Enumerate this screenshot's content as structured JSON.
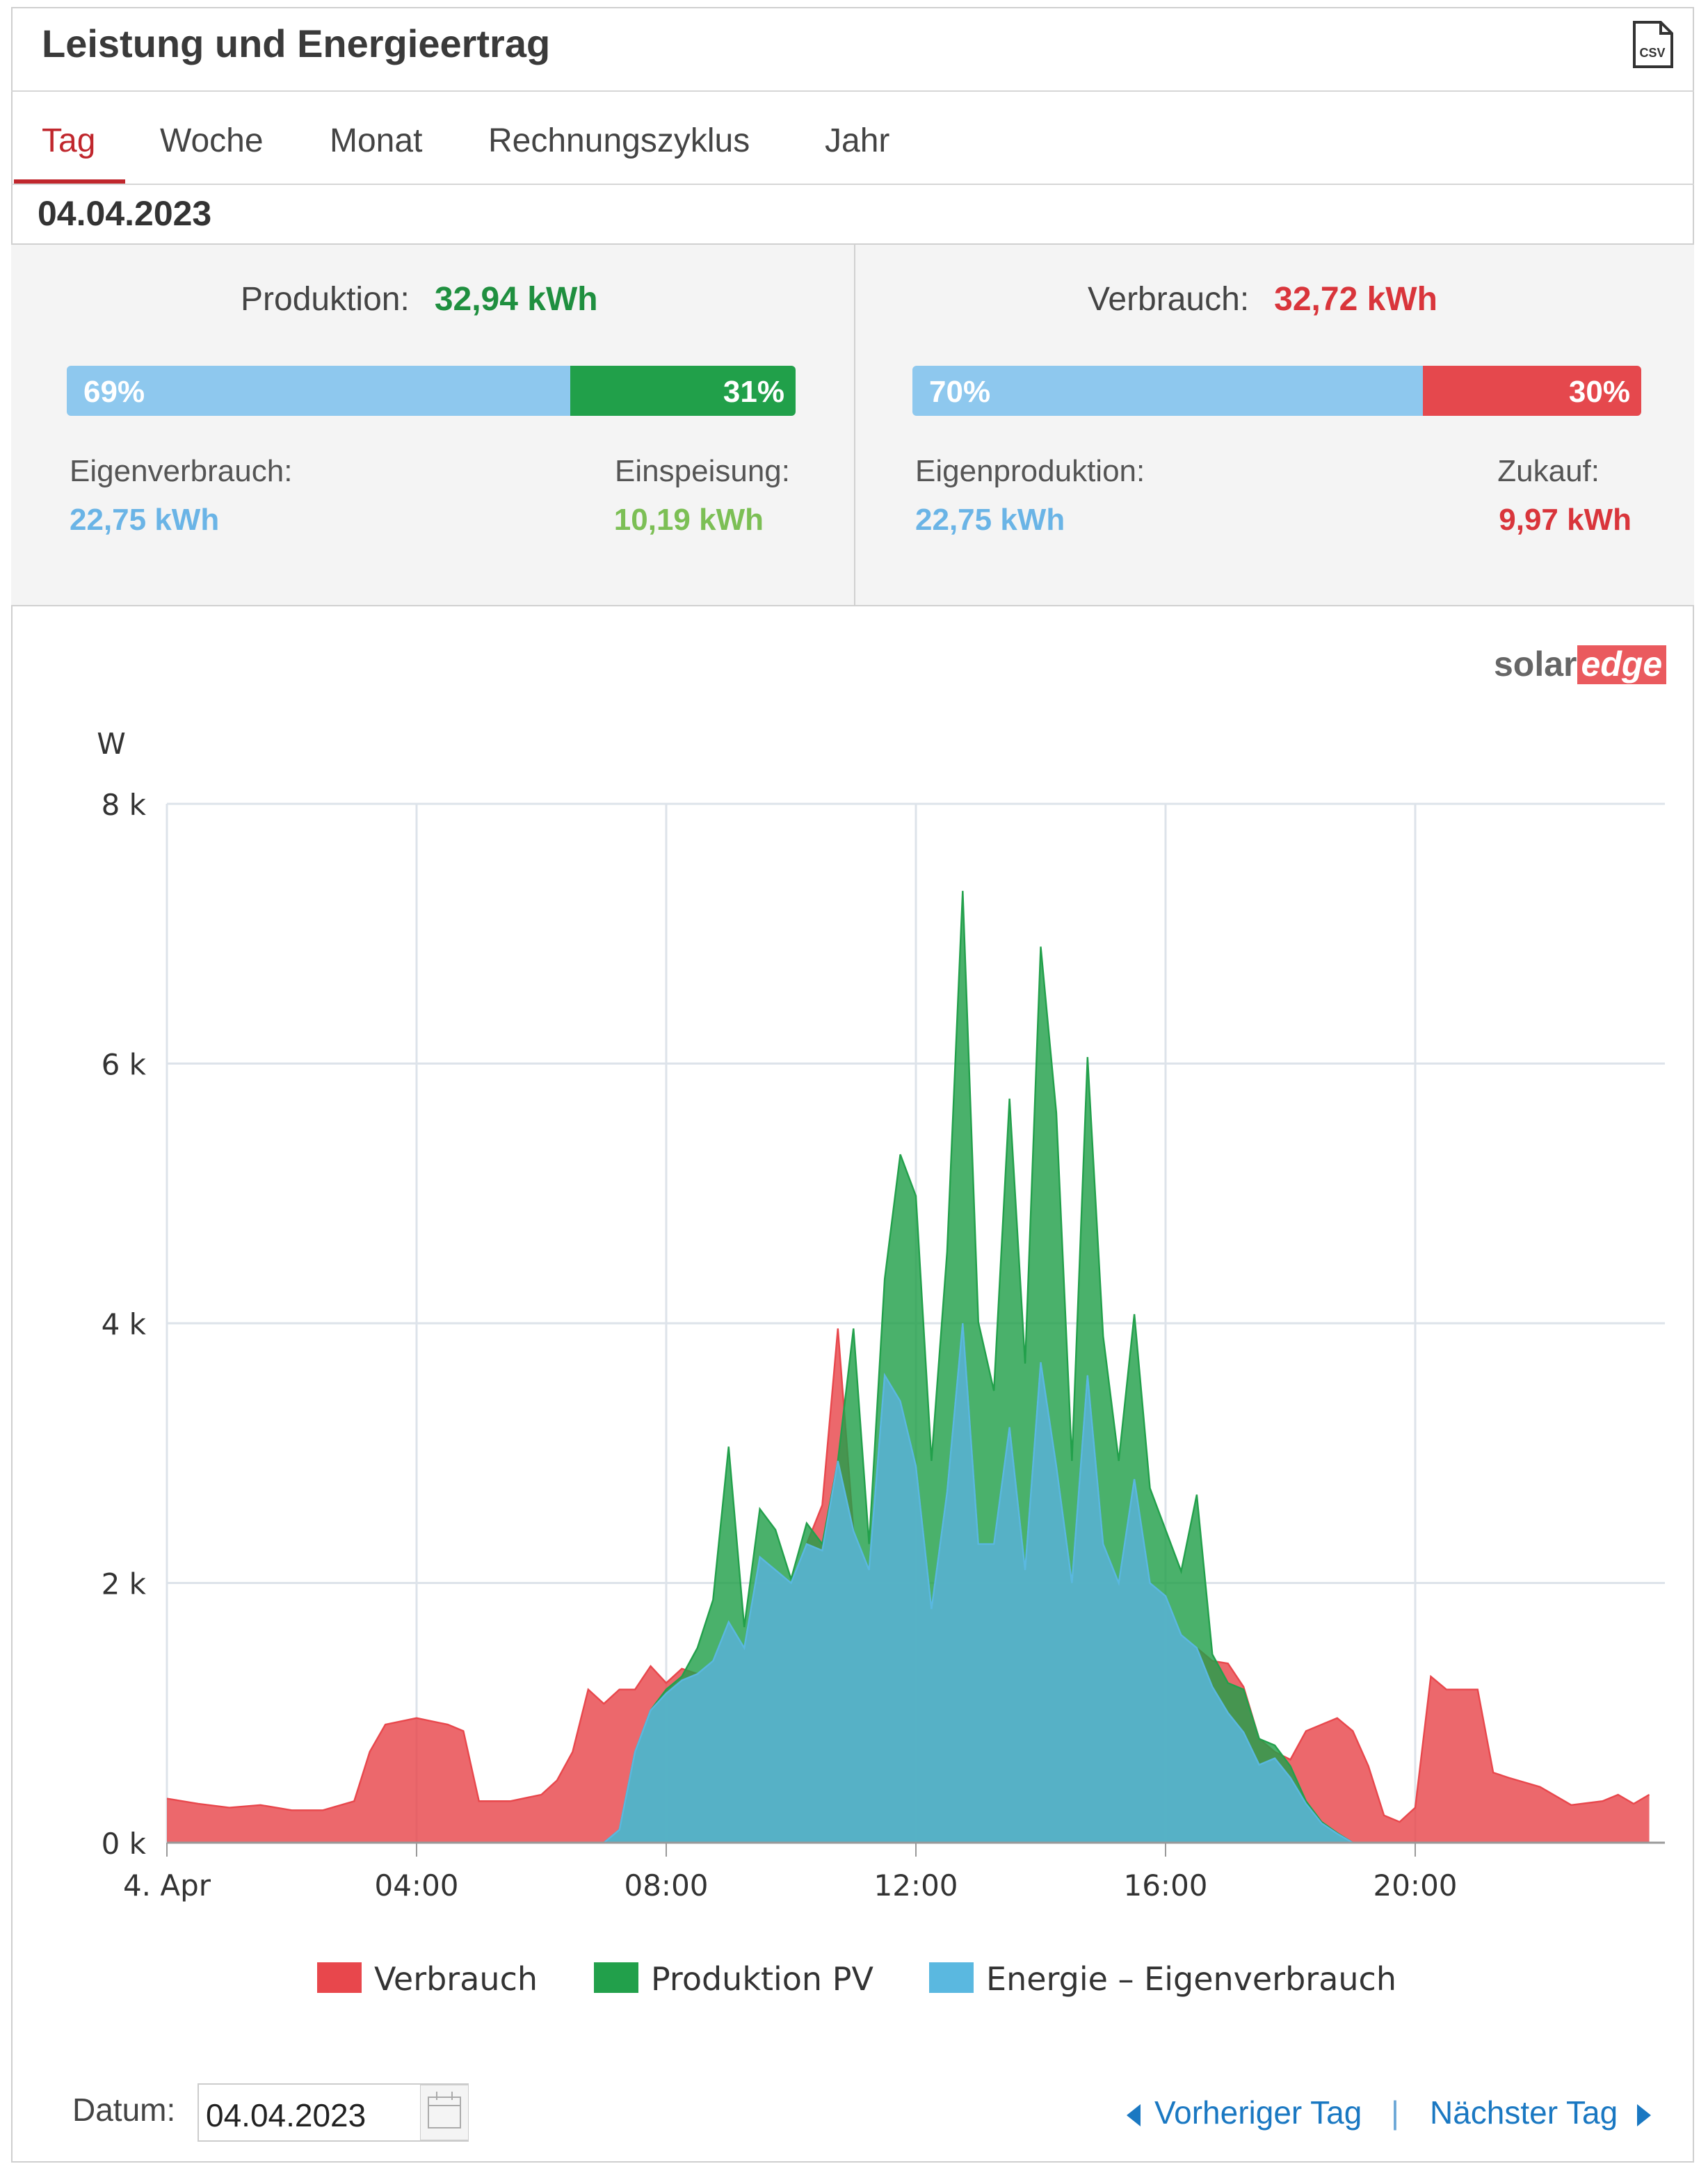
{
  "header": {
    "title": "Leistung und Energieertrag",
    "csv_label": "CSV"
  },
  "tabs": {
    "items": [
      "Tag",
      "Woche",
      "Monat",
      "Rechnungszyklus",
      "Jahr"
    ],
    "active": 0
  },
  "date": "04.04.2023",
  "production": {
    "label": "Produktion:",
    "total": "32,94 kWh",
    "bar": [
      {
        "value": 69,
        "label": "69%"
      },
      {
        "value": 31,
        "label": "31%"
      }
    ],
    "left": {
      "label": "Eigenverbrauch:",
      "value": "22,75 kWh"
    },
    "right": {
      "label": "Einspeisung:",
      "value": "10,19 kWh"
    }
  },
  "consumption": {
    "label": "Verbrauch:",
    "total": "32,72 kWh",
    "bar": [
      {
        "value": 70,
        "label": "70%"
      },
      {
        "value": 30,
        "label": "30%"
      }
    ],
    "left": {
      "label": "Eigenproduktion:",
      "value": "22,75 kWh"
    },
    "right": {
      "label": "Zukauf:",
      "value": "9,97 kWh"
    }
  },
  "logo": {
    "part1": "solar",
    "part2": "edge"
  },
  "chart_data": {
    "type": "area",
    "y_unit": "W",
    "x": [
      0,
      0.5,
      1,
      1.5,
      2,
      2.5,
      3,
      3.25,
      3.5,
      4,
      4.5,
      4.75,
      5,
      5.5,
      6,
      6.25,
      6.5,
      6.75,
      7,
      7.25,
      7.5,
      7.75,
      8,
      8.25,
      8.5,
      8.75,
      9,
      9.25,
      9.5,
      9.75,
      10,
      10.25,
      10.5,
      10.75,
      11,
      11.25,
      11.5,
      11.75,
      12,
      12.25,
      12.5,
      12.75,
      13,
      13.25,
      13.5,
      13.75,
      14,
      14.25,
      14.5,
      14.75,
      15,
      15.25,
      15.5,
      15.75,
      16,
      16.25,
      16.5,
      16.75,
      17,
      17.25,
      17.5,
      17.75,
      18,
      18.25,
      18.5,
      18.75,
      19,
      19.25,
      19.5,
      19.75,
      20,
      20.25,
      20.5,
      20.75,
      21,
      21.25,
      21.5,
      22,
      22.5,
      23,
      23.25,
      23.5,
      23.75
    ],
    "series": [
      {
        "name": "Verbrauch",
        "color": "#e8474c",
        "values": [
          340,
          300,
          270,
          290,
          250,
          250,
          320,
          700,
          910,
          960,
          910,
          860,
          320,
          320,
          370,
          480,
          700,
          1180,
          1070,
          1180,
          1180,
          1360,
          1230,
          1340,
          1300,
          1400,
          1700,
          1500,
          2200,
          2100,
          2000,
          2300,
          2600,
          3960,
          2400,
          2100,
          3600,
          3400,
          2900,
          1800,
          2700,
          4000,
          2300,
          2300,
          3200,
          2100,
          3700,
          2900,
          2000,
          3600,
          2300,
          2000,
          2800,
          2000,
          1900,
          1600,
          1500,
          1400,
          1380,
          1200,
          800,
          700,
          640,
          860,
          910,
          960,
          860,
          590,
          210,
          160,
          270,
          1280,
          1180,
          1180,
          1180,
          540,
          500,
          430,
          290,
          320,
          370,
          300,
          370
        ]
      },
      {
        "name": "Produktion PV",
        "color": "#22a04b",
        "values": [
          0,
          0,
          0,
          0,
          0,
          0,
          0,
          0,
          0,
          0,
          0,
          0,
          0,
          0,
          0,
          0,
          0,
          0,
          0,
          100,
          700,
          1020,
          1180,
          1280,
          1500,
          1870,
          3050,
          1660,
          2570,
          2410,
          2030,
          2460,
          2300,
          2940,
          3960,
          2300,
          4340,
          5300,
          4980,
          2940,
          4550,
          7330,
          4010,
          3480,
          5730,
          3690,
          6900,
          5620,
          2940,
          6050,
          3900,
          2940,
          4070,
          2730,
          2410,
          2090,
          2680,
          1450,
          1230,
          1180,
          800,
          750,
          590,
          320,
          160,
          75,
          0,
          0,
          0,
          0,
          0,
          0,
          0,
          0,
          0,
          0,
          0,
          0,
          0,
          0,
          0,
          0,
          0
        ]
      },
      {
        "name": "Energie – Eigenverbrauch",
        "color": "#5ab8e0",
        "values": [
          0,
          0,
          0,
          0,
          0,
          0,
          0,
          0,
          0,
          0,
          0,
          0,
          0,
          0,
          0,
          0,
          0,
          0,
          0,
          100,
          700,
          1020,
          1150,
          1250,
          1300,
          1400,
          1700,
          1500,
          2200,
          2100,
          2000,
          2300,
          2250,
          2940,
          2400,
          2100,
          3600,
          3400,
          2900,
          1800,
          2700,
          4000,
          2300,
          2300,
          3200,
          2100,
          3700,
          2900,
          2000,
          3600,
          2300,
          2000,
          2800,
          2000,
          1900,
          1600,
          1500,
          1200,
          1000,
          850,
          600,
          650,
          500,
          300,
          150,
          70,
          0,
          0,
          0,
          0,
          0,
          0,
          0,
          0,
          0,
          0,
          0,
          0,
          0,
          0,
          0,
          0,
          0
        ]
      }
    ],
    "xlim": [
      0,
      24
    ],
    "xticks": [
      {
        "value": 0,
        "label": "4. Apr"
      },
      {
        "value": 4,
        "label": "04:00"
      },
      {
        "value": 8,
        "label": "08:00"
      },
      {
        "value": 12,
        "label": "12:00"
      },
      {
        "value": 16,
        "label": "16:00"
      },
      {
        "value": 20,
        "label": "20:00"
      }
    ],
    "ylim": [
      0,
      8000
    ],
    "yticks": [
      {
        "value": 0,
        "label": "0 k"
      },
      {
        "value": 2000,
        "label": "2 k"
      },
      {
        "value": 4000,
        "label": "4 k"
      },
      {
        "value": 6000,
        "label": "6 k"
      },
      {
        "value": 8000,
        "label": "8 k"
      }
    ],
    "grid": true
  },
  "footer": {
    "date_label": "Datum:",
    "date_value": "04.04.2023",
    "prev": "Vorheriger Tag",
    "separator": "|",
    "next": "Nächster Tag"
  }
}
